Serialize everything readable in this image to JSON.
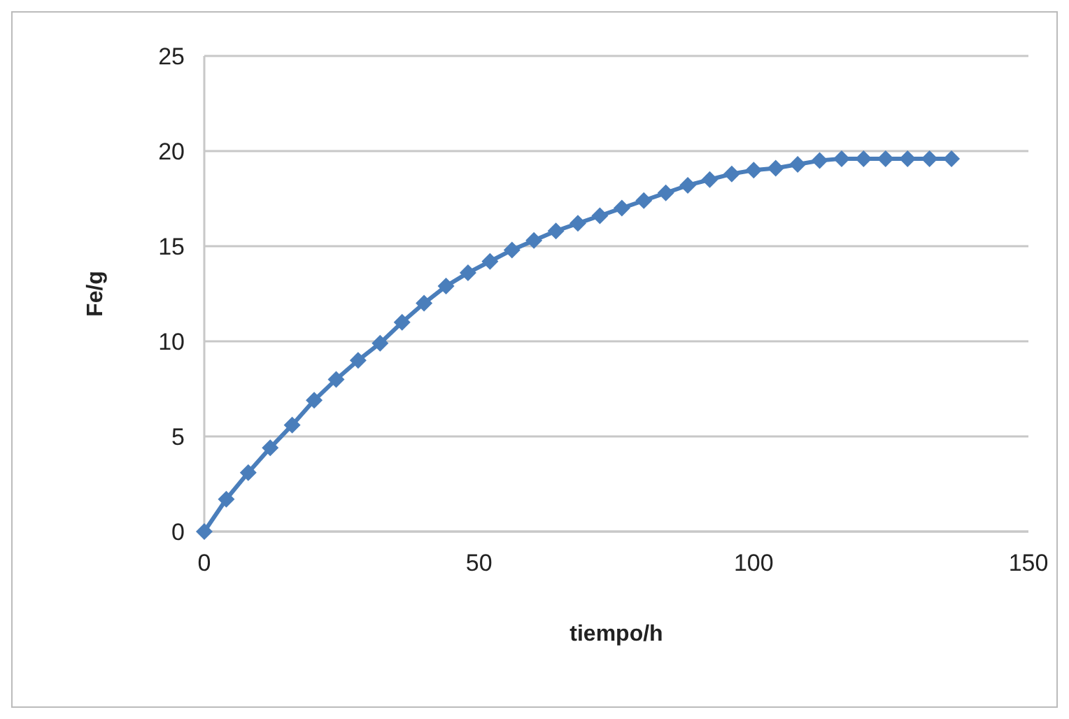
{
  "chart_data": {
    "type": "line",
    "xlabel": "tiempo/h",
    "ylabel": "Fe/g",
    "x": [
      0,
      4,
      8,
      12,
      16,
      20,
      24,
      28,
      32,
      36,
      40,
      44,
      48,
      52,
      56,
      60,
      64,
      68,
      72,
      76,
      80,
      84,
      88,
      92,
      96,
      100,
      104,
      108,
      112,
      116,
      120,
      124,
      128,
      132,
      136
    ],
    "series": [
      {
        "color": "#4a7ebb",
        "values": [
          0,
          1.7,
          3.1,
          4.4,
          5.6,
          6.9,
          8.0,
          9.0,
          9.9,
          11.0,
          12.0,
          12.9,
          13.6,
          14.2,
          14.8,
          15.3,
          15.8,
          16.2,
          16.6,
          17.0,
          17.4,
          17.8,
          18.2,
          18.5,
          18.8,
          19.0,
          19.1,
          19.3,
          19.5,
          19.6,
          19.6,
          19.6,
          19.6,
          19.6,
          19.6
        ]
      }
    ],
    "xlim": [
      0,
      150
    ],
    "xticks": [
      0,
      50,
      100,
      150
    ],
    "ylim": [
      0,
      25
    ],
    "yticks": [
      0,
      5,
      10,
      15,
      20,
      25
    ],
    "grid": "y",
    "marker": "diamond",
    "line_style": "solid"
  }
}
